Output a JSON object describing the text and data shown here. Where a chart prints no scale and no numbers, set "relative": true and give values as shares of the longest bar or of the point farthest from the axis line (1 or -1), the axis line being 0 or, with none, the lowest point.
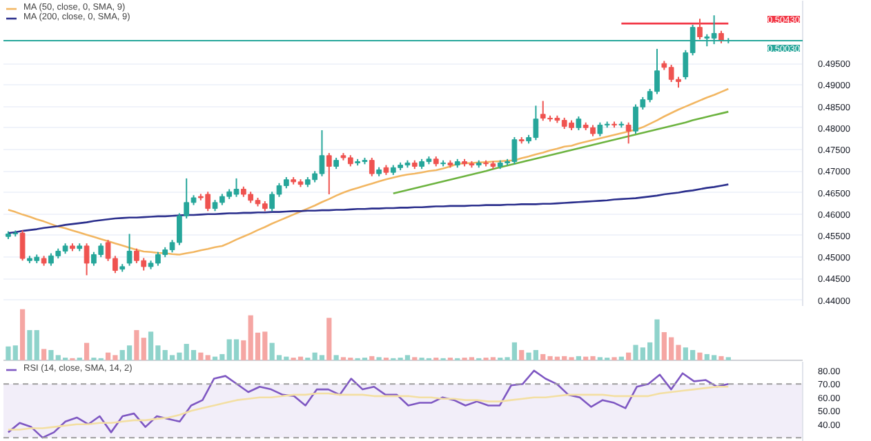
{
  "chart_data": [
    {
      "type": "candlestick",
      "ylim": [
        0.4385,
        0.5096
      ],
      "tick_labels": "y",
      "grid": "y",
      "legend": "top left",
      "yticks": [
        {
          "value": 0.44,
          "label": "0.44000"
        },
        {
          "value": 0.445,
          "label": "0.44500"
        },
        {
          "value": 0.45,
          "label": "0.45000"
        },
        {
          "value": 0.455,
          "label": "0.45500"
        },
        {
          "value": 0.46,
          "label": "0.46000"
        },
        {
          "value": 0.465,
          "label": "0.46500"
        },
        {
          "value": 0.47,
          "label": "0.47000"
        },
        {
          "value": 0.475,
          "label": "0.47500"
        },
        {
          "value": 0.48,
          "label": "0.48000"
        },
        {
          "value": 0.485,
          "label": "0.48500"
        },
        {
          "value": 0.49,
          "label": "0.49000"
        },
        {
          "value": 0.495,
          "label": "0.49500"
        }
      ],
      "categories": [
        null,
        null,
        null,
        null,
        null,
        null,
        null,
        null,
        null,
        null,
        null,
        null,
        null,
        null,
        null,
        null,
        null,
        null,
        null,
        null,
        null,
        null,
        null,
        null,
        null,
        null,
        null,
        null,
        null,
        null,
        null,
        null,
        null,
        null,
        null,
        null,
        null,
        null,
        null,
        null,
        null,
        null,
        null,
        null,
        null,
        null,
        null,
        null,
        null,
        null,
        null,
        null,
        null,
        null,
        null,
        null,
        null,
        null,
        null,
        null,
        null,
        null,
        null,
        null,
        null,
        null,
        null,
        null,
        null,
        null,
        null,
        null,
        null,
        null,
        null,
        null,
        null,
        null,
        null,
        null,
        null,
        null,
        null,
        null,
        null,
        null,
        null,
        null,
        null,
        null,
        null,
        null,
        null,
        null,
        null,
        null,
        null,
        null,
        null,
        null,
        null,
        null
      ],
      "ohlc": [
        [
          0.4548,
          0.456,
          0.4542,
          0.4554
        ],
        [
          0.4554,
          0.4562,
          0.4548,
          0.4556
        ],
        [
          0.4556,
          0.4562,
          0.4492,
          0.4497
        ],
        [
          0.4492,
          0.4503,
          0.4486,
          0.4497
        ],
        [
          0.4492,
          0.4506,
          0.4486,
          0.45
        ],
        [
          0.4497,
          0.4503,
          0.448,
          0.4486
        ],
        [
          0.4486,
          0.4509,
          0.448,
          0.4503
        ],
        [
          0.4503,
          0.452,
          0.4497,
          0.4514
        ],
        [
          0.4514,
          0.4532,
          0.4508,
          0.4526
        ],
        [
          0.4526,
          0.4532,
          0.4514,
          0.452
        ],
        [
          0.452,
          0.4532,
          0.4514,
          0.4526
        ],
        [
          0.4526,
          0.4532,
          0.4458,
          0.4486
        ],
        [
          0.4486,
          0.4512,
          0.448,
          0.4506
        ],
        [
          0.4506,
          0.4532,
          0.45,
          0.4526
        ],
        [
          0.4534,
          0.454,
          0.4491,
          0.4497
        ],
        [
          0.4497,
          0.4503,
          0.4463,
          0.4469
        ],
        [
          0.4472,
          0.4484,
          0.4466,
          0.4478
        ],
        [
          0.4486,
          0.4554,
          0.448,
          0.4514
        ],
        [
          0.4514,
          0.452,
          0.4486,
          0.4492
        ],
        [
          0.4492,
          0.4498,
          0.4469,
          0.4478
        ],
        [
          0.4478,
          0.4492,
          0.4472,
          0.4486
        ],
        [
          0.4486,
          0.4512,
          0.448,
          0.4506
        ],
        [
          0.4506,
          0.4523,
          0.45,
          0.4517
        ],
        [
          0.4517,
          0.454,
          0.4511,
          0.4534
        ],
        [
          0.4534,
          0.4602,
          0.4528,
          0.4596
        ],
        [
          0.4596,
          0.4683,
          0.459,
          0.4627
        ],
        [
          0.4627,
          0.4644,
          0.4621,
          0.4638
        ],
        [
          0.4641,
          0.4647,
          0.4632,
          0.4638
        ],
        [
          0.4646,
          0.4652,
          0.4607,
          0.4613
        ],
        [
          0.4613,
          0.4633,
          0.4607,
          0.4627
        ],
        [
          0.4627,
          0.4647,
          0.4621,
          0.4641
        ],
        [
          0.4641,
          0.4658,
          0.4635,
          0.4652
        ],
        [
          0.4646,
          0.4683,
          0.464,
          0.4658
        ],
        [
          0.4658,
          0.4664,
          0.464,
          0.4646
        ],
        [
          0.4646,
          0.4652,
          0.4626,
          0.4632
        ],
        [
          0.4632,
          0.4638,
          0.4618,
          0.4624
        ],
        [
          0.4624,
          0.463,
          0.4607,
          0.4613
        ],
        [
          0.4613,
          0.4652,
          0.4607,
          0.4646
        ],
        [
          0.4646,
          0.4672,
          0.464,
          0.4666
        ],
        [
          0.4666,
          0.4686,
          0.466,
          0.468
        ],
        [
          0.468,
          0.4686,
          0.4669,
          0.4675
        ],
        [
          0.4675,
          0.4681,
          0.4663,
          0.4669
        ],
        [
          0.4669,
          0.4686,
          0.4663,
          0.468
        ],
        [
          0.468,
          0.47,
          0.4674,
          0.4694
        ],
        [
          0.4694,
          0.4795,
          0.4688,
          0.4736
        ],
        [
          0.4736,
          0.4742,
          0.4646,
          0.4711
        ],
        [
          0.4711,
          0.4731,
          0.4705,
          0.4725
        ],
        [
          0.4736,
          0.4742,
          0.4725,
          0.4731
        ],
        [
          0.4731,
          0.4737,
          0.4711,
          0.4717
        ],
        [
          0.4719,
          0.4728,
          0.4713,
          0.4722
        ],
        [
          0.4722,
          0.4731,
          0.4716,
          0.4725
        ],
        [
          0.4725,
          0.4731,
          0.4688,
          0.4694
        ],
        [
          0.4694,
          0.4709,
          0.4688,
          0.4703
        ],
        [
          0.4708,
          0.4714,
          0.4691,
          0.4697
        ],
        [
          0.4697,
          0.4714,
          0.4691,
          0.4708
        ],
        [
          0.4708,
          0.472,
          0.4702,
          0.4714
        ],
        [
          0.4714,
          0.4725,
          0.4708,
          0.4719
        ],
        [
          0.4719,
          0.4725,
          0.4705,
          0.4711
        ],
        [
          0.4711,
          0.4728,
          0.4705,
          0.4722
        ],
        [
          0.4722,
          0.4734,
          0.4716,
          0.4728
        ],
        [
          0.4728,
          0.4734,
          0.4711,
          0.4717
        ],
        [
          0.4717,
          0.4725,
          0.4711,
          0.4719
        ],
        [
          0.4719,
          0.4725,
          0.4708,
          0.4714
        ],
        [
          0.4714,
          0.4728,
          0.4708,
          0.4722
        ],
        [
          0.4722,
          0.4728,
          0.4711,
          0.4717
        ],
        [
          0.4717,
          0.4723,
          0.4708,
          0.4714
        ],
        [
          0.4714,
          0.4725,
          0.4708,
          0.4719
        ],
        [
          0.4719,
          0.4725,
          0.4711,
          0.4717
        ],
        [
          0.4717,
          0.4723,
          0.4705,
          0.4711
        ],
        [
          0.4711,
          0.4725,
          0.4705,
          0.4719
        ],
        [
          0.4719,
          0.4728,
          0.4713,
          0.4722
        ],
        [
          0.4722,
          0.4779,
          0.4716,
          0.4773
        ],
        [
          0.4773,
          0.4779,
          0.4764,
          0.477
        ],
        [
          0.477,
          0.4784,
          0.4764,
          0.4778
        ],
        [
          0.4778,
          0.4852,
          0.4772,
          0.4821
        ],
        [
          0.4832,
          0.4863,
          0.4817,
          0.4823
        ],
        [
          0.4823,
          0.4829,
          0.4815,
          0.4821
        ],
        [
          0.4823,
          0.4829,
          0.4812,
          0.4818
        ],
        [
          0.4818,
          0.4824,
          0.4798,
          0.4804
        ],
        [
          0.4812,
          0.4818,
          0.4795,
          0.4801
        ],
        [
          0.4801,
          0.4827,
          0.4795,
          0.4821
        ],
        [
          0.4807,
          0.4813,
          0.4795,
          0.4801
        ],
        [
          0.4801,
          0.4807,
          0.4781,
          0.4787
        ],
        [
          0.4787,
          0.4813,
          0.4781,
          0.4807
        ],
        [
          0.4807,
          0.4815,
          0.4801,
          0.4809
        ],
        [
          0.4809,
          0.4815,
          0.4801,
          0.4807
        ],
        [
          0.4807,
          0.4815,
          0.4801,
          0.4809
        ],
        [
          0.4807,
          0.4813,
          0.4764,
          0.4793
        ],
        [
          0.4793,
          0.4855,
          0.4787,
          0.4849
        ],
        [
          0.4849,
          0.4872,
          0.4843,
          0.4866
        ],
        [
          0.4866,
          0.4891,
          0.486,
          0.4885
        ],
        [
          0.4885,
          0.4984,
          0.4879,
          0.4933
        ],
        [
          0.495,
          0.4956,
          0.4935,
          0.4941
        ],
        [
          0.4941,
          0.4947,
          0.4907,
          0.4913
        ],
        [
          0.4913,
          0.4919,
          0.4894,
          0.4908
        ],
        [
          0.4919,
          0.4981,
          0.4913,
          0.4975
        ],
        [
          0.4975,
          0.504,
          0.4969,
          0.5034
        ],
        [
          0.5034,
          0.5054,
          0.5006,
          0.5012
        ],
        [
          0.5009,
          0.5018,
          0.499,
          0.5012
        ],
        [
          0.5009,
          0.5062,
          0.4995,
          0.502
        ],
        [
          0.502,
          0.5026,
          0.4997,
          0.5003
        ],
        [
          0.5003,
          0.5009,
          0.4997,
          0.5003
        ]
      ],
      "colors": [
        "#26a69a",
        "#26a69a",
        "#ef5350",
        "#26a69a",
        "#26a69a",
        "#ef5350",
        "#26a69a",
        "#26a69a",
        "#26a69a",
        "#ef5350",
        "#26a69a",
        "#ef5350",
        "#26a69a",
        "#26a69a",
        "#ef5350",
        "#ef5350",
        "#26a69a",
        "#26a69a",
        "#ef5350",
        "#ef5350",
        "#26a69a",
        "#26a69a",
        "#26a69a",
        "#26a69a",
        "#26a69a",
        "#26a69a",
        "#26a69a",
        "#ef5350",
        "#ef5350",
        "#26a69a",
        "#26a69a",
        "#26a69a",
        "#26a69a",
        "#ef5350",
        "#ef5350",
        "#ef5350",
        "#ef5350",
        "#26a69a",
        "#26a69a",
        "#26a69a",
        "#ef5350",
        "#ef5350",
        "#26a69a",
        "#26a69a",
        "#26a69a",
        "#ef5350",
        "#26a69a",
        "#ef5350",
        "#ef5350",
        "#26a69a",
        "#26a69a",
        "#ef5350",
        "#26a69a",
        "#ef5350",
        "#26a69a",
        "#26a69a",
        "#26a69a",
        "#ef5350",
        "#26a69a",
        "#26a69a",
        "#ef5350",
        "#26a69a",
        "#ef5350",
        "#26a69a",
        "#ef5350",
        "#ef5350",
        "#26a69a",
        "#ef5350",
        "#ef5350",
        "#26a69a",
        "#26a69a",
        "#26a69a",
        "#ef5350",
        "#26a69a",
        "#26a69a",
        "#ef5350",
        "#ef5350",
        "#ef5350",
        "#ef5350",
        "#ef5350",
        "#26a69a",
        "#ef5350",
        "#ef5350",
        "#26a69a",
        "#26a69a",
        "#ef5350",
        "#26a69a",
        "#ef5350",
        "#26a69a",
        "#26a69a",
        "#26a69a",
        "#26a69a",
        "#ef5350",
        "#ef5350",
        "#ef5350",
        "#26a69a",
        "#26a69a",
        "#ef5350",
        "#26a69a",
        "#26a69a",
        "#ef5350",
        "#26a69a"
      ],
      "series": [
        {
          "type": "line",
          "name": "MA (50, close, 0, SMA, 9)",
          "color": "#f2b661",
          "values": [
            0.461,
            0.4605,
            0.4599,
            0.4594,
            0.4588,
            0.4583,
            0.4577,
            0.4571,
            0.4567,
            0.4562,
            0.4557,
            0.4552,
            0.4547,
            0.4542,
            0.4537,
            0.4532,
            0.4527,
            0.4522,
            0.4517,
            0.4513,
            0.4512,
            0.451,
            0.4509,
            0.4507,
            0.4506,
            0.4509,
            0.4512,
            0.4516,
            0.4519,
            0.4523,
            0.4526,
            0.4533,
            0.4541,
            0.4548,
            0.4555,
            0.4563,
            0.457,
            0.4578,
            0.4585,
            0.4592,
            0.4599,
            0.4606,
            0.4613,
            0.462,
            0.4628,
            0.4635,
            0.4643,
            0.465,
            0.4656,
            0.4661,
            0.4666,
            0.4671,
            0.4676,
            0.4681,
            0.4685,
            0.4689,
            0.4692,
            0.4694,
            0.4697,
            0.47,
            0.4702,
            0.4706,
            0.4711,
            0.4717,
            0.4718,
            0.4719,
            0.472,
            0.4721,
            0.4722,
            0.4723,
            0.4724,
            0.4725,
            0.473,
            0.4734,
            0.4739,
            0.4743,
            0.4748,
            0.4752,
            0.4757,
            0.4759,
            0.4764,
            0.4768,
            0.4772,
            0.4776,
            0.478,
            0.4784,
            0.4788,
            0.4792,
            0.4796,
            0.4802,
            0.481,
            0.4818,
            0.4827,
            0.4835,
            0.4843,
            0.485,
            0.4857,
            0.4864,
            0.4871,
            0.4877,
            0.4884,
            0.4891
          ]
        },
        {
          "type": "line",
          "name": "MA (200, close, 0, SMA, 9)",
          "color": "#2a2e8c",
          "values": [
            0.4556,
            0.4558,
            0.4561,
            0.4563,
            0.4565,
            0.4568,
            0.457,
            0.4572,
            0.4575,
            0.4577,
            0.4579,
            0.4581,
            0.4584,
            0.4586,
            0.4588,
            0.459,
            0.4591,
            0.4592,
            0.4592,
            0.4593,
            0.4594,
            0.4595,
            0.4595,
            0.4596,
            0.4597,
            0.4598,
            0.4598,
            0.4599,
            0.46,
            0.46,
            0.4601,
            0.4602,
            0.4602,
            0.4603,
            0.4603,
            0.4604,
            0.4604,
            0.4605,
            0.4605,
            0.4606,
            0.4607,
            0.4607,
            0.4608,
            0.4608,
            0.4609,
            0.4609,
            0.461,
            0.461,
            0.4611,
            0.4612,
            0.4612,
            0.4613,
            0.4613,
            0.4614,
            0.4614,
            0.4615,
            0.4615,
            0.4616,
            0.4616,
            0.4617,
            0.4618,
            0.4618,
            0.4619,
            0.4619,
            0.4619,
            0.462,
            0.462,
            0.4621,
            0.4621,
            0.4621,
            0.4622,
            0.4622,
            0.4623,
            0.4623,
            0.4623,
            0.4624,
            0.4624,
            0.4625,
            0.4626,
            0.4627,
            0.4628,
            0.4629,
            0.463,
            0.4631,
            0.4632,
            0.4634,
            0.4635,
            0.4636,
            0.4637,
            0.4639,
            0.4641,
            0.4643,
            0.4646,
            0.4648,
            0.465,
            0.4653,
            0.4655,
            0.4658,
            0.4661,
            0.4663,
            0.4666,
            0.4669
          ]
        },
        {
          "type": "line",
          "color": "#6cb33f",
          "values": [
            null,
            null,
            null,
            null,
            null,
            null,
            null,
            null,
            null,
            null,
            null,
            null,
            null,
            null,
            null,
            null,
            null,
            null,
            null,
            null,
            null,
            null,
            null,
            null,
            null,
            null,
            null,
            null,
            null,
            null,
            null,
            null,
            null,
            null,
            null,
            null,
            null,
            null,
            null,
            null,
            null,
            null,
            null,
            null,
            null,
            null,
            null,
            null,
            null,
            null,
            null,
            null,
            null,
            null,
            0.4648,
            0.4652,
            0.4656,
            0.466,
            0.4664,
            0.4668,
            0.4672,
            0.4676,
            0.468,
            0.4684,
            0.4688,
            0.4692,
            0.4696,
            0.47,
            0.4705,
            0.4709,
            0.4713,
            0.4717,
            0.4721,
            0.4725,
            0.4729,
            0.4733,
            0.4737,
            0.4741,
            0.4745,
            0.4749,
            0.4753,
            0.4757,
            0.4761,
            0.4765,
            0.4769,
            0.4773,
            0.4777,
            0.4781,
            0.4785,
            0.4789,
            0.4793,
            0.4797,
            0.4801,
            0.4805,
            0.4809,
            0.4813,
            0.4818,
            0.4822,
            0.4826,
            0.483,
            0.4834,
            0.4838
          ]
        },
        {
          "type": "line",
          "color": "#f23645",
          "values": [
            null,
            null,
            null,
            null,
            null,
            null,
            null,
            null,
            null,
            null,
            null,
            null,
            null,
            null,
            null,
            null,
            null,
            null,
            null,
            null,
            null,
            null,
            null,
            null,
            null,
            null,
            null,
            null,
            null,
            null,
            null,
            null,
            null,
            null,
            null,
            null,
            null,
            null,
            null,
            null,
            null,
            null,
            null,
            null,
            null,
            null,
            null,
            null,
            null,
            null,
            null,
            null,
            null,
            null,
            null,
            null,
            null,
            null,
            null,
            null,
            null,
            null,
            null,
            null,
            null,
            null,
            null,
            null,
            null,
            null,
            null,
            null,
            null,
            null,
            null,
            null,
            null,
            null,
            null,
            null,
            null,
            null,
            null,
            null,
            null,
            null,
            0.5043,
            0.5043,
            0.5043,
            0.5043,
            0.5043,
            0.5043,
            0.5043,
            0.5043,
            0.5043,
            0.5043,
            0.5043,
            0.5043,
            0.5043,
            0.5043,
            0.5043,
            0.5043
          ]
        }
      ],
      "annotations": [
        "0.50430"
      ],
      "ref_lines": [
        {
          "axis": "y",
          "value": 0.5003,
          "label": "0.50030",
          "color": "#26a69a",
          "line_style": "solid"
        }
      ]
    },
    {
      "type": "bar",
      "relative": true,
      "tick_labels": false,
      "categories": [
        null,
        null,
        null,
        null,
        null,
        null,
        null,
        null,
        null,
        null,
        null,
        null,
        null,
        null,
        null,
        null,
        null,
        null,
        null,
        null,
        null,
        null,
        null,
        null,
        null,
        null,
        null,
        null,
        null,
        null,
        null,
        null,
        null,
        null,
        null,
        null,
        null,
        null,
        null,
        null,
        null,
        null,
        null,
        null,
        null,
        null,
        null,
        null,
        null,
        null,
        null,
        null,
        null,
        null,
        null,
        null,
        null,
        null,
        null,
        null,
        null,
        null,
        null,
        null,
        null,
        null,
        null,
        null,
        null,
        null,
        null,
        null,
        null,
        null,
        null,
        null,
        null,
        null,
        null,
        null,
        null,
        null,
        null,
        null,
        null,
        null,
        null,
        null,
        null,
        null,
        null,
        null,
        null,
        null,
        null,
        null,
        null,
        null,
        null,
        null,
        null,
        null
      ],
      "values": [
        0.27,
        0.29,
        1,
        0.59,
        0.59,
        0.22,
        0.2,
        0.1,
        0.05,
        0.04,
        0.05,
        0.34,
        0.05,
        0.04,
        0.15,
        0.1,
        0.2,
        0.29,
        0.59,
        0.44,
        0.56,
        0.29,
        0.2,
        0.1,
        0.15,
        0.32,
        0.2,
        0.15,
        0.1,
        0.07,
        0.12,
        0.41,
        0.41,
        0.39,
        0.88,
        0.54,
        0.56,
        0.34,
        0.1,
        0.07,
        0.05,
        0.07,
        0.05,
        0.15,
        0.1,
        0.83,
        0.1,
        0.06,
        0.05,
        0.04,
        0.05,
        0.08,
        0.06,
        0.05,
        0.04,
        0.05,
        0.1,
        0.06,
        0.05,
        0.04,
        0.05,
        0.04,
        0.05,
        0.04,
        0.05,
        0.06,
        0.04,
        0.05,
        0.06,
        0.05,
        0.06,
        0.35,
        0.2,
        0.15,
        0.2,
        0.12,
        0.08,
        0.07,
        0.08,
        0.06,
        0.08,
        0.07,
        0.08,
        0.06,
        0.05,
        0.06,
        0.07,
        0.15,
        0.3,
        0.25,
        0.35,
        0.8,
        0.55,
        0.45,
        0.3,
        0.25,
        0.2,
        0.15,
        0.12,
        0.1,
        0.08,
        0.06
      ],
      "colors": [
        "#8fd3cb",
        "#8fd3cb",
        "#f5a6a3",
        "#8fd3cb",
        "#8fd3cb",
        "#f5a6a3",
        "#8fd3cb",
        "#8fd3cb",
        "#8fd3cb",
        "#f5a6a3",
        "#8fd3cb",
        "#f5a6a3",
        "#8fd3cb",
        "#8fd3cb",
        "#f5a6a3",
        "#f5a6a3",
        "#8fd3cb",
        "#8fd3cb",
        "#f5a6a3",
        "#f5a6a3",
        "#8fd3cb",
        "#8fd3cb",
        "#8fd3cb",
        "#8fd3cb",
        "#8fd3cb",
        "#8fd3cb",
        "#8fd3cb",
        "#f5a6a3",
        "#f5a6a3",
        "#8fd3cb",
        "#8fd3cb",
        "#8fd3cb",
        "#8fd3cb",
        "#f5a6a3",
        "#f5a6a3",
        "#f5a6a3",
        "#f5a6a3",
        "#8fd3cb",
        "#8fd3cb",
        "#8fd3cb",
        "#f5a6a3",
        "#f5a6a3",
        "#8fd3cb",
        "#8fd3cb",
        "#8fd3cb",
        "#f5a6a3",
        "#8fd3cb",
        "#f5a6a3",
        "#f5a6a3",
        "#8fd3cb",
        "#8fd3cb",
        "#f5a6a3",
        "#8fd3cb",
        "#f5a6a3",
        "#8fd3cb",
        "#8fd3cb",
        "#8fd3cb",
        "#f5a6a3",
        "#8fd3cb",
        "#8fd3cb",
        "#f5a6a3",
        "#8fd3cb",
        "#f5a6a3",
        "#8fd3cb",
        "#f5a6a3",
        "#f5a6a3",
        "#8fd3cb",
        "#f5a6a3",
        "#f5a6a3",
        "#8fd3cb",
        "#8fd3cb",
        "#8fd3cb",
        "#f5a6a3",
        "#8fd3cb",
        "#8fd3cb",
        "#f5a6a3",
        "#f5a6a3",
        "#f5a6a3",
        "#f5a6a3",
        "#f5a6a3",
        "#8fd3cb",
        "#f5a6a3",
        "#f5a6a3",
        "#8fd3cb",
        "#8fd3cb",
        "#f5a6a3",
        "#8fd3cb",
        "#f5a6a3",
        "#8fd3cb",
        "#8fd3cb",
        "#8fd3cb",
        "#8fd3cb",
        "#f5a6a3",
        "#f5a6a3",
        "#f5a6a3",
        "#8fd3cb",
        "#8fd3cb",
        "#f5a6a3",
        "#8fd3cb",
        "#8fd3cb",
        "#f5a6a3",
        "#8fd3cb"
      ]
    },
    {
      "type": "line",
      "ylim": [
        27,
        86.6
      ],
      "tick_labels": "y",
      "legend": "top left",
      "yticks": [
        {
          "value": 40,
          "label": "40.00"
        },
        {
          "value": 50,
          "label": "50.00"
        },
        {
          "value": 60,
          "label": "60.00"
        },
        {
          "value": 70,
          "label": "70.00"
        },
        {
          "value": 80,
          "label": "80.00"
        }
      ],
      "categories": [
        null,
        null,
        null,
        null,
        null,
        null,
        null,
        null,
        null,
        null,
        null,
        null,
        null,
        null,
        null,
        null,
        null,
        null,
        null,
        null,
        null,
        null,
        null,
        null,
        null,
        null,
        null,
        null,
        null,
        null,
        null,
        null,
        null,
        null,
        null,
        null,
        null,
        null,
        null,
        null,
        null,
        null,
        null,
        null,
        null,
        null,
        null,
        null,
        null,
        null,
        null,
        null,
        null,
        null,
        null,
        null,
        null,
        null,
        null,
        null,
        null,
        null,
        null,
        null
      ],
      "series": [
        {
          "name": "RSI (14, close, SMA, 14, 2)",
          "color": "#7e57c2",
          "values": [
            34,
            41,
            38,
            30,
            34,
            42,
            45,
            40,
            46,
            34,
            46,
            48,
            38,
            46,
            44,
            42,
            54,
            58,
            74,
            76,
            70,
            64,
            68,
            66,
            62,
            61,
            54,
            66,
            66,
            62,
            74,
            66,
            68,
            62,
            62,
            54,
            56,
            56,
            60,
            58,
            54,
            57,
            54,
            54,
            69,
            70,
            80,
            74,
            70,
            62,
            60,
            53,
            58,
            56,
            52,
            68,
            70,
            77,
            66,
            78,
            72,
            73,
            68,
            70
          ]
        },
        {
          "color": "#f3dfa2",
          "values": [
            36,
            36,
            37,
            37,
            38,
            39,
            40,
            40,
            41,
            41,
            42,
            43,
            43,
            44,
            45,
            47,
            50,
            52,
            54,
            56,
            58,
            59,
            60,
            60,
            61,
            62,
            62,
            63,
            63,
            62,
            62,
            62,
            61,
            61,
            61,
            61,
            60,
            60,
            59,
            59,
            58,
            58,
            57,
            57,
            58,
            59,
            60,
            60,
            61,
            62,
            62,
            62,
            62,
            61,
            61,
            61,
            61,
            63,
            64,
            65,
            66,
            67,
            68,
            68
          ]
        }
      ],
      "bands": [
        {
          "axis": "y",
          "from": 30,
          "to": 70,
          "color": "#ede7f6"
        }
      ],
      "ref_lines": [
        {
          "axis": "y",
          "value": 70,
          "color": "#9e9e9e",
          "line_style": "dashed"
        },
        {
          "axis": "y",
          "value": 30,
          "color": "#9e9e9e",
          "line_style": "dashed"
        }
      ]
    }
  ]
}
